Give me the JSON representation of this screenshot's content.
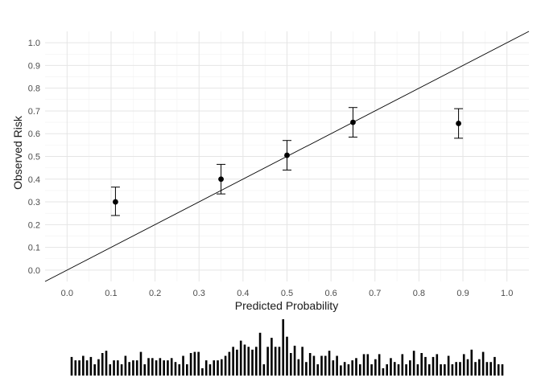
{
  "chart_data": {
    "type": "scatter",
    "title": "",
    "xlabel": "Predicted Probability",
    "ylabel": "Observed Risk",
    "xlim": [
      -0.05,
      1.05
    ],
    "ylim": [
      -0.05,
      1.05
    ],
    "x_ticks": [
      "0.0",
      "0.1",
      "0.2",
      "0.3",
      "0.4",
      "0.5",
      "0.6",
      "0.7",
      "0.8",
      "0.9",
      "1.0"
    ],
    "y_ticks": [
      "0.0",
      "0.1",
      "0.2",
      "0.3",
      "0.4",
      "0.5",
      "0.6",
      "0.7",
      "0.8",
      "0.9",
      "1.0"
    ],
    "grid": true,
    "reference_line": {
      "from": [
        -0.05,
        -0.05
      ],
      "to": [
        1.05,
        1.05
      ]
    },
    "points": [
      {
        "x": 0.11,
        "y": 0.3,
        "lower": 0.24,
        "upper": 0.365
      },
      {
        "x": 0.35,
        "y": 0.4,
        "lower": 0.335,
        "upper": 0.465
      },
      {
        "x": 0.5,
        "y": 0.505,
        "lower": 0.44,
        "upper": 0.57
      },
      {
        "x": 0.65,
        "y": 0.65,
        "lower": 0.585,
        "upper": 0.715
      },
      {
        "x": 0.89,
        "y": 0.645,
        "lower": 0.58,
        "upper": 0.71
      }
    ],
    "distribution_histogram": {
      "relative_heights": [
        0.33,
        0.27,
        0.27,
        0.35,
        0.27,
        0.33,
        0.2,
        0.29,
        0.4,
        0.44,
        0.2,
        0.27,
        0.27,
        0.2,
        0.35,
        0.24,
        0.27,
        0.27,
        0.42,
        0.2,
        0.31,
        0.31,
        0.27,
        0.31,
        0.27,
        0.27,
        0.31,
        0.24,
        0.2,
        0.35,
        0.2,
        0.4,
        0.42,
        0.42,
        0.13,
        0.27,
        0.2,
        0.27,
        0.27,
        0.29,
        0.35,
        0.42,
        0.51,
        0.46,
        0.62,
        0.55,
        0.51,
        0.46,
        0.51,
        0.76,
        0.2,
        0.51,
        0.67,
        0.51,
        0.51,
        1.0,
        0.69,
        0.4,
        0.53,
        0.29,
        0.51,
        0.24,
        0.4,
        0.35,
        0.2,
        0.35,
        0.35,
        0.44,
        0.27,
        0.35,
        0.18,
        0.24,
        0.2,
        0.27,
        0.31,
        0.2,
        0.38,
        0.38,
        0.2,
        0.29,
        0.38,
        0.13,
        0.2,
        0.31,
        0.24,
        0.2,
        0.38,
        0.2,
        0.27,
        0.44,
        0.2,
        0.4,
        0.33,
        0.2,
        0.33,
        0.38,
        0.2,
        0.2,
        0.35,
        0.2,
        0.24,
        0.24,
        0.38,
        0.29,
        0.46,
        0.24,
        0.29,
        0.42,
        0.24,
        0.24,
        0.33,
        0.2,
        0.2
      ]
    }
  }
}
